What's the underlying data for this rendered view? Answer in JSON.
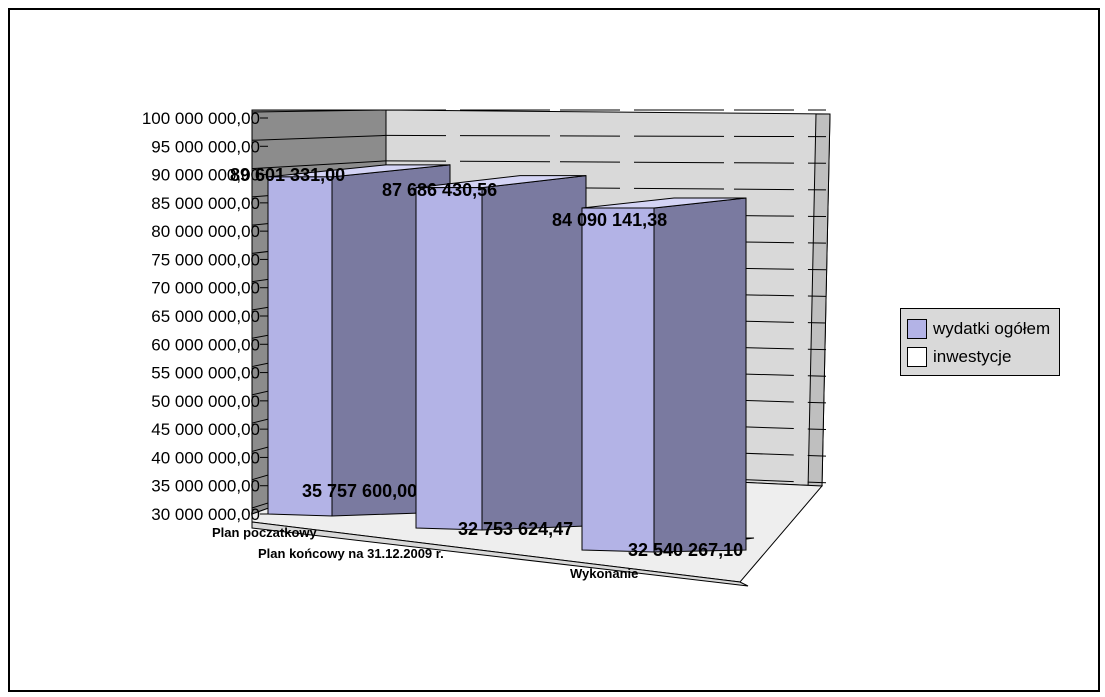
{
  "chart_data": {
    "type": "bar",
    "title": "",
    "xlabel": "",
    "ylabel": "",
    "categories": [
      "Plan poczatkowy",
      "Plan końcowy na 31.12.2009 r.",
      "Wykonanie"
    ],
    "series": [
      {
        "name": "wydatki ogółem",
        "values": [
          89601331.0,
          87686430.56,
          84090141.38
        ],
        "labels": [
          "89 601 331,00",
          "87 686 430,56",
          "84 090 141,38"
        ],
        "color": "#b3b3e6"
      },
      {
        "name": "inwestycje",
        "values": [
          35757600.0,
          32753624.47,
          32540267.1
        ],
        "labels": [
          "35 757 600,00",
          "32 753 624,47",
          "32 540 267,10"
        ],
        "color": "#ffffff"
      }
    ],
    "ylim": [
      30000000,
      100000000
    ],
    "yticks": [
      "100 000 000,00",
      "95 000 000,00",
      "90 000 000,00",
      "85 000 000,00",
      "80 000 000,00",
      "75 000 000,00",
      "70 000 000,00",
      "65 000 000,00",
      "60 000 000,00",
      "55 000 000,00",
      "50 000 000,00",
      "45 000 000,00",
      "40 000 000,00",
      "35 000 000,00",
      "30 000 000,00"
    ],
    "grid": true,
    "legend": "right",
    "wall_color": "#d9d9d9",
    "floor_color": "#d9d9d9"
  }
}
